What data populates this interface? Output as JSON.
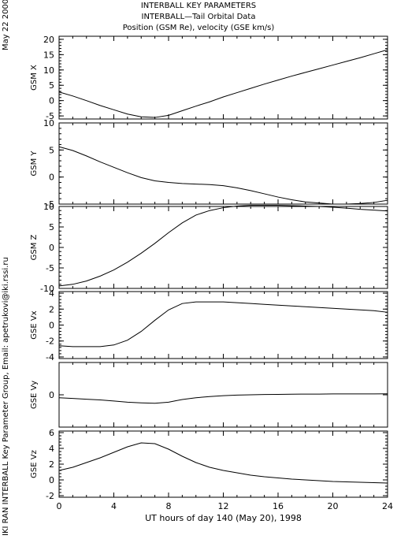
{
  "header": {
    "line1": "INTERBALL KEY PARAMETERS",
    "line2": "INTERBALL—Tail Orbital Data",
    "line3": "Position (GSM Re), velocity (GSE km/s)"
  },
  "side_date": "May 22 2000",
  "side_credit": "IKI RAN INTERBALL Key Parameter Group, Email: apetrukovi@iki.rssi.ru",
  "chart_data": {
    "type": "line",
    "x": [
      0,
      1,
      2,
      3,
      4,
      5,
      6,
      7,
      8,
      9,
      10,
      11,
      12,
      13,
      14,
      15,
      16,
      17,
      18,
      19,
      20,
      21,
      22,
      23,
      24
    ],
    "xlabel": "UT hours of day 140 (May 20), 1998",
    "xlim": [
      0,
      24
    ],
    "xticks": [
      "0",
      "4",
      "8",
      "12",
      "16",
      "20",
      "24"
    ],
    "grid": false,
    "panels": [
      {
        "ylabel": "GSM X",
        "ylim": [
          -6,
          21
        ],
        "yticks": [
          20,
          15,
          10,
          5,
          0,
          -5
        ],
        "values": [
          2.8,
          1.5,
          0.0,
          -1.6,
          -3.0,
          -4.4,
          -5.3,
          -5.5,
          -4.8,
          -3.3,
          -1.8,
          -0.4,
          1.2,
          2.6,
          4.0,
          5.4,
          6.7,
          8.0,
          9.2,
          10.4,
          11.6,
          12.8,
          14.0,
          15.3,
          16.6
        ]
      },
      {
        "ylabel": "GSM Y",
        "ylim": [
          -5,
          10
        ],
        "yticks": [
          10,
          5,
          0,
          -5
        ],
        "values": [
          5.6,
          4.9,
          3.9,
          2.8,
          1.8,
          0.8,
          -0.1,
          -0.7,
          -1.0,
          -1.2,
          -1.3,
          -1.4,
          -1.6,
          -2.0,
          -2.5,
          -3.1,
          -3.7,
          -4.2,
          -4.6,
          -4.8,
          -5.0,
          -5.0,
          -4.9,
          -4.7,
          -4.3
        ]
      },
      {
        "ylabel": "GSM Z",
        "ylim": [
          -10,
          10
        ],
        "yticks": [
          10,
          5,
          0,
          -5,
          -10
        ],
        "values": [
          -9.4,
          -9.0,
          -8.2,
          -7.0,
          -5.5,
          -3.6,
          -1.4,
          1.0,
          3.6,
          6.0,
          7.9,
          9.0,
          9.7,
          10.1,
          10.3,
          10.3,
          10.3,
          10.2,
          10.1,
          10.0,
          9.8,
          9.6,
          9.3,
          9.1,
          8.9
        ]
      },
      {
        "ylabel": "GSE Vx",
        "ylim": [
          -4.2,
          4.2
        ],
        "yticks": [
          4,
          2,
          0,
          -2,
          -4
        ],
        "values": [
          -2.6,
          -2.7,
          -2.7,
          -2.7,
          -2.5,
          -1.9,
          -0.8,
          0.6,
          1.9,
          2.7,
          2.9,
          2.9,
          2.9,
          2.8,
          2.7,
          2.6,
          2.5,
          2.4,
          2.3,
          2.2,
          2.1,
          2.0,
          1.9,
          1.8,
          1.6
        ]
      },
      {
        "ylabel": "GSE Vy",
        "ylim": [
          -2.2,
          2.2
        ],
        "yticks": [
          0
        ],
        "values": [
          -0.2,
          -0.25,
          -0.3,
          -0.35,
          -0.42,
          -0.5,
          -0.55,
          -0.58,
          -0.5,
          -0.32,
          -0.2,
          -0.12,
          -0.06,
          -0.02,
          0.0,
          0.02,
          0.03,
          0.04,
          0.05,
          0.05,
          0.06,
          0.06,
          0.06,
          0.06,
          0.07
        ]
      },
      {
        "ylabel": "GSE Vz",
        "ylim": [
          -2.2,
          6.2
        ],
        "yticks": [
          6,
          4,
          2,
          0,
          -2
        ],
        "values": [
          1.2,
          1.6,
          2.2,
          2.8,
          3.5,
          4.2,
          4.7,
          4.6,
          3.9,
          3.0,
          2.2,
          1.6,
          1.2,
          0.9,
          0.6,
          0.4,
          0.25,
          0.1,
          0.0,
          -0.1,
          -0.2,
          -0.25,
          -0.3,
          -0.35,
          -0.4
        ]
      }
    ]
  }
}
